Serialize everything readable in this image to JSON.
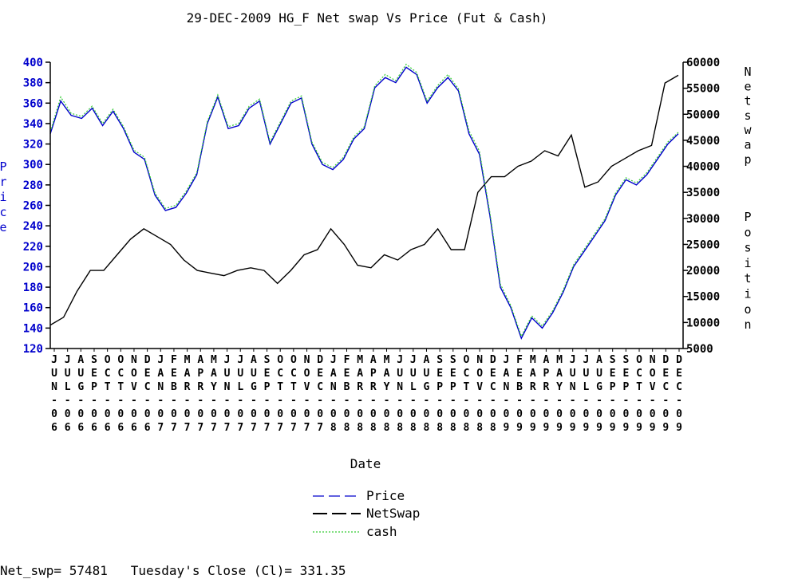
{
  "chart_data": {
    "type": "line",
    "title": "29-DEC-2009 HG_F Net swap Vs Price (Fut & Cash)",
    "xlabel": "Date",
    "ylabel": "Price",
    "y2label": "Net swap Position",
    "ylim": [
      120,
      400
    ],
    "y2lim": [
      5000,
      60000
    ],
    "y_ticks": [
      "120",
      "140",
      "160",
      "180",
      "200",
      "220",
      "240",
      "260",
      "280",
      "300",
      "320",
      "340",
      "360",
      "380",
      "400"
    ],
    "y2_ticks": [
      "5000",
      "10000",
      "15000",
      "20000",
      "25000",
      "30000",
      "35000",
      "40000",
      "45000",
      "50000",
      "55000",
      "60000"
    ],
    "x_ticks": [
      [
        "J",
        "U",
        "N",
        "0",
        "6"
      ],
      [
        "J",
        "U",
        "L",
        "0",
        "6"
      ],
      [
        "A",
        "U",
        "G",
        "0",
        "6"
      ],
      [
        "S",
        "E",
        "P",
        "0",
        "6"
      ],
      [
        "O",
        "C",
        "T",
        "0",
        "6"
      ],
      [
        "O",
        "C",
        "T",
        "0",
        "6"
      ],
      [
        "N",
        "O",
        "V",
        "0",
        "6"
      ],
      [
        "D",
        "E",
        "C",
        "0",
        "6"
      ],
      [
        "J",
        "A",
        "N",
        "0",
        "7"
      ],
      [
        "F",
        "E",
        "B",
        "0",
        "7"
      ],
      [
        "M",
        "A",
        "R",
        "0",
        "7"
      ],
      [
        "A",
        "P",
        "R",
        "0",
        "7"
      ],
      [
        "M",
        "A",
        "Y",
        "0",
        "7"
      ],
      [
        "J",
        "U",
        "N",
        "0",
        "7"
      ],
      [
        "J",
        "U",
        "L",
        "0",
        "7"
      ],
      [
        "A",
        "U",
        "G",
        "0",
        "7"
      ],
      [
        "S",
        "E",
        "P",
        "0",
        "7"
      ],
      [
        "O",
        "C",
        "T",
        "0",
        "7"
      ],
      [
        "O",
        "C",
        "T",
        "0",
        "7"
      ],
      [
        "N",
        "O",
        "V",
        "0",
        "7"
      ],
      [
        "D",
        "E",
        "C",
        "0",
        "7"
      ],
      [
        "J",
        "A",
        "N",
        "0",
        "8"
      ],
      [
        "F",
        "E",
        "B",
        "0",
        "8"
      ],
      [
        "M",
        "A",
        "R",
        "0",
        "8"
      ],
      [
        "A",
        "P",
        "R",
        "0",
        "8"
      ],
      [
        "M",
        "A",
        "Y",
        "0",
        "8"
      ],
      [
        "J",
        "U",
        "N",
        "0",
        "8"
      ],
      [
        "J",
        "U",
        "L",
        "0",
        "8"
      ],
      [
        "A",
        "U",
        "G",
        "0",
        "8"
      ],
      [
        "S",
        "E",
        "P",
        "0",
        "8"
      ],
      [
        "S",
        "E",
        "P",
        "0",
        "8"
      ],
      [
        "O",
        "C",
        "T",
        "0",
        "8"
      ],
      [
        "N",
        "O",
        "V",
        "0",
        "8"
      ],
      [
        "D",
        "E",
        "C",
        "0",
        "8"
      ],
      [
        "J",
        "A",
        "N",
        "0",
        "9"
      ],
      [
        "F",
        "E",
        "B",
        "0",
        "9"
      ],
      [
        "M",
        "A",
        "R",
        "0",
        "9"
      ],
      [
        "A",
        "P",
        "R",
        "0",
        "9"
      ],
      [
        "M",
        "A",
        "Y",
        "0",
        "9"
      ],
      [
        "J",
        "U",
        "N",
        "0",
        "9"
      ],
      [
        "J",
        "U",
        "L",
        "0",
        "9"
      ],
      [
        "A",
        "U",
        "G",
        "0",
        "9"
      ],
      [
        "S",
        "E",
        "P",
        "0",
        "9"
      ],
      [
        "S",
        "E",
        "P",
        "0",
        "9"
      ],
      [
        "O",
        "C",
        "T",
        "0",
        "9"
      ],
      [
        "N",
        "O",
        "V",
        "0",
        "9"
      ],
      [
        "D",
        "E",
        "C",
        "0",
        "9"
      ],
      [
        "D",
        "E",
        "C",
        "0",
        "9"
      ]
    ],
    "legend_position": "bottom-center",
    "series": [
      {
        "name": "Price",
        "axis": "left",
        "color": "#0000cc",
        "values": [
          330,
          362,
          348,
          345,
          355,
          338,
          352,
          335,
          312,
          305,
          270,
          255,
          258,
          272,
          290,
          340,
          366,
          335,
          338,
          355,
          362,
          320,
          340,
          360,
          365,
          320,
          300,
          295,
          305,
          325,
          335,
          375,
          385,
          380,
          395,
          388,
          360,
          375,
          385,
          372,
          330,
          310,
          250,
          180,
          160,
          130,
          150,
          140,
          155,
          175,
          200,
          215,
          230,
          245,
          270,
          285,
          280,
          290,
          305,
          320,
          330
        ]
      },
      {
        "name": "NetSwap",
        "axis": "right",
        "color": "#000000",
        "values": [
          9500,
          11000,
          16000,
          20000,
          20000,
          23000,
          26000,
          28000,
          26500,
          25000,
          22000,
          20000,
          19500,
          19000,
          20000,
          20500,
          20000,
          17500,
          20000,
          23000,
          24000,
          28000,
          25000,
          21000,
          20500,
          23000,
          22000,
          24000,
          25000,
          28000,
          24000,
          24000,
          35000,
          38000,
          38000,
          40000,
          41000,
          43000,
          42000,
          46000,
          36000,
          37000,
          40000,
          41500,
          43000,
          44000,
          56000,
          57481
        ]
      },
      {
        "name": "cash",
        "axis": "left",
        "color": "#33cc33",
        "values": [
          332,
          366,
          350,
          347,
          357,
          340,
          354,
          337,
          314,
          307,
          272,
          257,
          260,
          274,
          292,
          342,
          368,
          337,
          340,
          357,
          364,
          322,
          342,
          362,
          367,
          322,
          302,
          297,
          307,
          327,
          337,
          377,
          388,
          382,
          398,
          390,
          362,
          377,
          388,
          374,
          333,
          313,
          253,
          183,
          162,
          132,
          152,
          142,
          157,
          177,
          202,
          217,
          232,
          247,
          272,
          287,
          282,
          292,
          307,
          322,
          331.35
        ]
      }
    ]
  },
  "footer": {
    "text": "Net_swp= 57481   Tuesday's Close (Cl)= 331.35"
  }
}
